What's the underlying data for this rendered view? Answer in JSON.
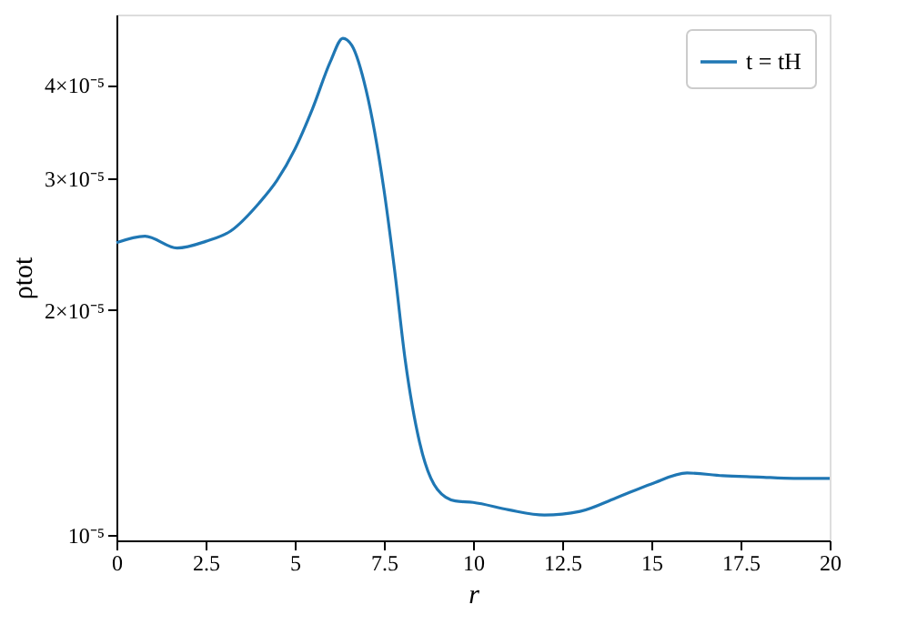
{
  "chart_data": {
    "type": "line",
    "xlabel": "r",
    "ylabel": "ρtot",
    "x": [
      0,
      0.8,
      1.7,
      2.5,
      3.2,
      4,
      4.5,
      5,
      5.5,
      6,
      6.35,
      6.6,
      7,
      7.5,
      7.8,
      8.1,
      8.5,
      9,
      9.5,
      10,
      11,
      12,
      13,
      14,
      15,
      16,
      17,
      18,
      19,
      20
    ],
    "series": [
      {
        "name": "t = tH",
        "color": "#1f77b4",
        "values": [
          2.46e-05,
          2.51e-05,
          2.42e-05,
          2.47e-05,
          2.55e-05,
          2.78e-05,
          2.98e-05,
          3.28e-05,
          3.72e-05,
          4.3e-05,
          4.62e-05,
          4.52e-05,
          3.94e-05,
          2.9e-05,
          2.26e-05,
          1.71e-05,
          1.33e-05,
          1.15e-05,
          1.11e-05,
          1.105e-05,
          1.08e-05,
          1.063e-05,
          1.075e-05,
          1.12e-05,
          1.17e-05,
          1.21e-05,
          1.2e-05,
          1.195e-05,
          1.19e-05,
          1.19e-05
        ]
      }
    ],
    "xlim": [
      0,
      20
    ],
    "xticks": [
      0,
      2.5,
      5,
      7.5,
      10,
      12.5,
      15,
      17.5,
      20
    ],
    "ylim": [
      9.83e-06,
      4.97e-05
    ],
    "yticks": [
      {
        "value": 1e-05,
        "label": "10⁻⁵"
      },
      {
        "value": 2e-05,
        "label": "2×10⁻⁵"
      },
      {
        "value": 3e-05,
        "label": "3×10⁻⁵"
      },
      {
        "value": 4e-05,
        "label": "4×10⁻⁵"
      }
    ],
    "log": true,
    "grid": false,
    "legend": "top right",
    "line_style": "solid",
    "marker": "none"
  }
}
